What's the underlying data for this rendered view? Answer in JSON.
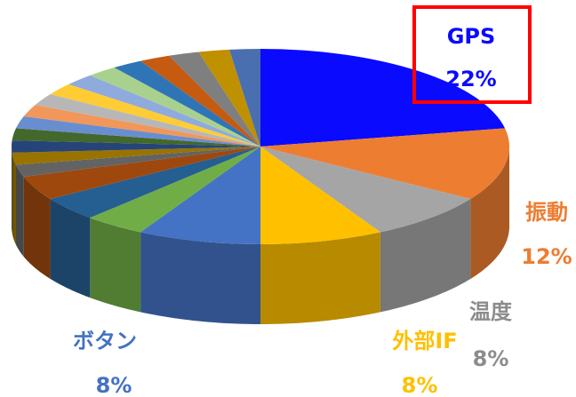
{
  "chart_data": {
    "type": "pie3d",
    "categories": [
      "GPS",
      "振動",
      "温度",
      "外部IF",
      "ボタン",
      null,
      null,
      null,
      null,
      null,
      null,
      null,
      null,
      null,
      null,
      null,
      null,
      null,
      null,
      null,
      null,
      null,
      null
    ],
    "values": [
      22,
      12,
      8,
      8,
      8,
      4,
      4,
      4,
      2,
      2,
      2,
      2,
      2,
      2,
      2,
      2,
      2,
      2,
      2,
      2,
      2,
      2,
      2
    ],
    "value_labels": [
      "22%",
      "12%",
      "8%",
      "8%",
      "8%",
      null,
      null,
      null,
      null,
      null,
      null,
      null,
      null,
      null,
      null,
      null,
      null,
      null,
      null,
      null,
      null,
      null,
      null
    ],
    "colors": [
      "#0a0aff",
      "#ed7d31",
      "#a5a5a5",
      "#ffc000",
      "#4472c4",
      "#70ad47",
      "#255e91",
      "#9e480e",
      "#636363",
      "#997300",
      "#264478",
      "#43682b",
      "#698ed0",
      "#f1975a",
      "#b7b7b7",
      "#ffcd33",
      "#8faadc",
      "#a9d18e",
      "#2f75b5",
      "#c55a11",
      "#7f7f7f",
      "#bf9000",
      "#4a6fb0"
    ],
    "highlight": "GPS"
  }
}
